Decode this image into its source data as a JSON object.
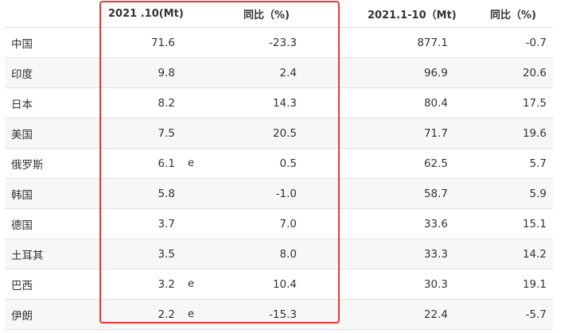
{
  "headers": {
    "country": "",
    "oct": "2021 .10(Mt)",
    "oct_yoy": "同比（%)",
    "ytd": "2021.1-10（Mt)",
    "ytd_yoy": "同比（%)"
  },
  "rows": [
    {
      "country": "中国",
      "oct": "71.6",
      "flag": "",
      "oct_yoy": "-23.3",
      "ytd": "877.1",
      "ytd_yoy": "-0.7"
    },
    {
      "country": "印度",
      "oct": "9.8",
      "flag": "",
      "oct_yoy": "2.4",
      "ytd": "96.9",
      "ytd_yoy": "20.6"
    },
    {
      "country": "日本",
      "oct": "8.2",
      "flag": "",
      "oct_yoy": "14.3",
      "ytd": "80.4",
      "ytd_yoy": "17.5"
    },
    {
      "country": "美国",
      "oct": "7.5",
      "flag": "",
      "oct_yoy": "20.5",
      "ytd": "71.7",
      "ytd_yoy": "19.6"
    },
    {
      "country": "俄罗斯",
      "oct": "6.1",
      "flag": "e",
      "oct_yoy": "0.5",
      "ytd": "62.5",
      "ytd_yoy": "5.7"
    },
    {
      "country": "韩国",
      "oct": "5.8",
      "flag": "",
      "oct_yoy": "-1.0",
      "ytd": "58.7",
      "ytd_yoy": "5.9"
    },
    {
      "country": "德国",
      "oct": "3.7",
      "flag": "",
      "oct_yoy": "7.0",
      "ytd": "33.6",
      "ytd_yoy": "15.1"
    },
    {
      "country": "土耳其",
      "oct": "3.5",
      "flag": "",
      "oct_yoy": "8.0",
      "ytd": "33.3",
      "ytd_yoy": "14.2"
    },
    {
      "country": "巴西",
      "oct": "3.2",
      "flag": "e",
      "oct_yoy": "10.4",
      "ytd": "30.3",
      "ytd_yoy": "19.1"
    },
    {
      "country": "伊朗",
      "oct": "2.2",
      "flag": "e",
      "oct_yoy": "-15.3",
      "ytd": "22.4",
      "ytd_yoy": "-5.7"
    }
  ],
  "colors": {
    "highlight_border": "#e53935",
    "row_alt": "#f7f7f7",
    "divider": "#e2e2e2"
  }
}
